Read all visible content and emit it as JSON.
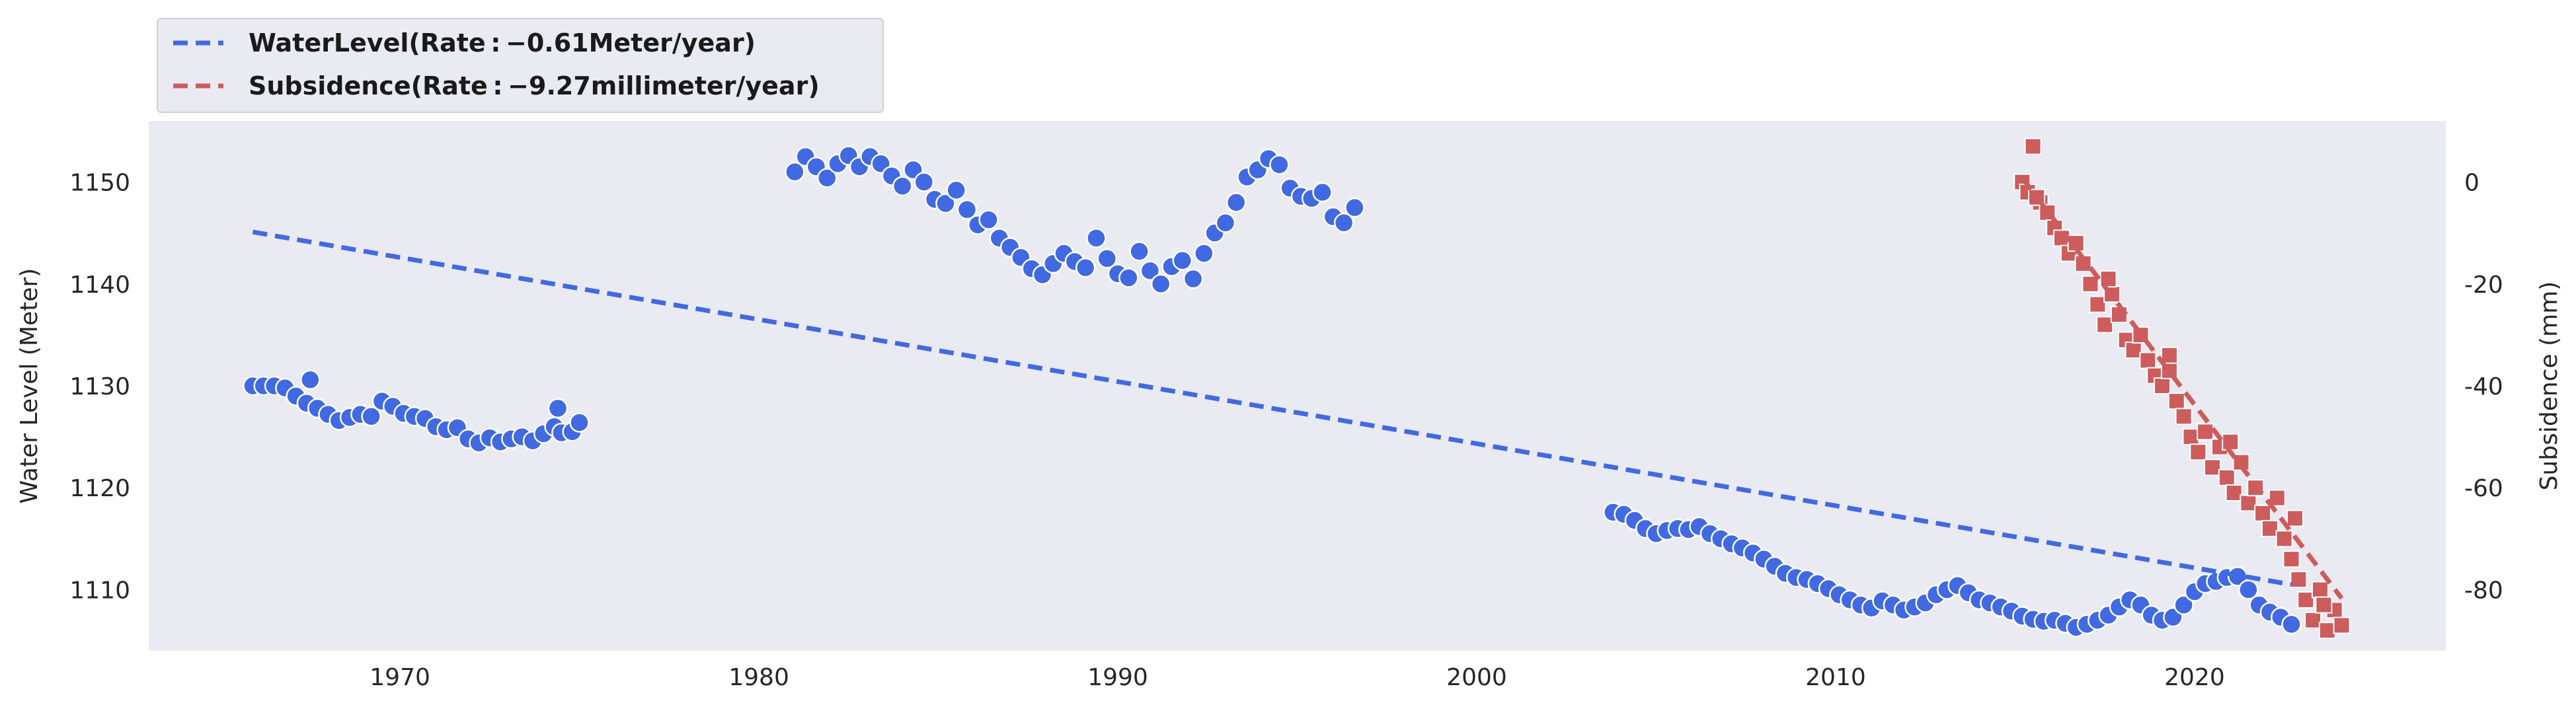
{
  "chart_data": {
    "type": "scatter",
    "title": "",
    "xlabel": "",
    "ylabel": "Water Level (Meter)",
    "y2label": "Subsidence (mm)",
    "xlim": [
      1963,
      2027
    ],
    "ylim": [
      1104,
      1156
    ],
    "y2lim": [
      -92,
      12
    ],
    "x_ticks": [
      "1970",
      "1980",
      "1990",
      "2000",
      "2010",
      "2020"
    ],
    "y_ticks": [
      "1110",
      "1120",
      "1130",
      "1140",
      "1150"
    ],
    "y2_ticks": [
      "-80",
      "-60",
      "-40",
      "-20",
      "0"
    ],
    "grid": false,
    "legend_position": "top-left (outside plot)",
    "colors": {
      "water": "#4169E1",
      "subsidence": "#CD5C5C",
      "plot_bg": "#EAEAF2"
    },
    "legend": [
      {
        "label": "WaterLevel(Rate : −0.61Meter/year)",
        "color": "#4169E1",
        "style": "dashed"
      },
      {
        "label": "Subsidence(Rate : −9.27millimeter/year)",
        "color": "#CD5C5C",
        "style": "dashed"
      }
    ],
    "series": [
      {
        "name": "WaterLevel",
        "axis": "left",
        "marker": "circle",
        "x": [
          1965.9,
          1966.2,
          1966.5,
          1966.8,
          1967.1,
          1967.4,
          1967.7,
          1968.0,
          1968.3,
          1968.6,
          1968.9,
          1969.2,
          1969.5,
          1969.8,
          1970.1,
          1970.4,
          1970.7,
          1971.0,
          1971.3,
          1971.6,
          1971.9,
          1972.2,
          1972.5,
          1972.8,
          1973.1,
          1973.4,
          1973.7,
          1974.0,
          1974.3,
          1974.5,
          1974.8,
          1975.0,
          1967.5,
          1974.4,
          1981.0,
          1981.3,
          1981.6,
          1981.9,
          1982.2,
          1982.5,
          1982.8,
          1983.1,
          1983.4,
          1983.7,
          1984.0,
          1984.3,
          1984.6,
          1984.9,
          1985.2,
          1985.5,
          1985.8,
          1986.1,
          1986.4,
          1986.7,
          1987.0,
          1987.3,
          1987.6,
          1987.9,
          1988.2,
          1988.5,
          1988.8,
          1989.1,
          1989.4,
          1989.7,
          1990.0,
          1990.3,
          1990.6,
          1990.9,
          1991.2,
          1991.5,
          1991.8,
          1992.1,
          1992.4,
          1992.7,
          1993.0,
          1993.3,
          1993.6,
          1993.9,
          1994.2,
          1994.5,
          1994.8,
          1995.1,
          1995.4,
          1995.7,
          1996.0,
          1996.3,
          1996.6,
          2003.8,
          2004.1,
          2004.4,
          2004.7,
          2005.0,
          2005.3,
          2005.6,
          2005.9,
          2006.2,
          2006.5,
          2006.8,
          2007.1,
          2007.4,
          2007.7,
          2008.0,
          2008.3,
          2008.6,
          2008.9,
          2009.2,
          2009.5,
          2009.8,
          2010.1,
          2010.4,
          2010.7,
          2011.0,
          2011.3,
          2011.6,
          2011.9,
          2012.2,
          2012.5,
          2012.8,
          2013.1,
          2013.4,
          2013.7,
          2014.0,
          2014.3,
          2014.6,
          2014.9,
          2015.2,
          2015.5,
          2015.8,
          2016.1,
          2016.4,
          2016.7,
          2017.0,
          2017.3,
          2017.6,
          2017.9,
          2018.2,
          2018.5,
          2018.8,
          2019.1,
          2019.4,
          2019.7,
          2020.0,
          2020.3,
          2020.6,
          2020.9,
          2021.2,
          2021.5,
          2021.8,
          2022.1,
          2022.4,
          2022.7
        ],
        "y": [
          1130.0,
          1130.0,
          1130.0,
          1129.8,
          1129.0,
          1128.3,
          1127.8,
          1127.2,
          1126.6,
          1126.9,
          1127.2,
          1127.0,
          1128.5,
          1128.0,
          1127.3,
          1127.0,
          1126.8,
          1126.0,
          1125.7,
          1125.9,
          1124.8,
          1124.4,
          1124.9,
          1124.5,
          1124.8,
          1125.0,
          1124.6,
          1125.3,
          1126.0,
          1125.4,
          1125.5,
          1126.4,
          1130.6,
          1127.8,
          1151.0,
          1152.5,
          1151.5,
          1150.4,
          1151.8,
          1152.6,
          1151.5,
          1152.5,
          1151.8,
          1150.6,
          1149.6,
          1151.2,
          1150.0,
          1148.3,
          1147.9,
          1149.2,
          1147.3,
          1145.8,
          1146.3,
          1144.5,
          1143.6,
          1142.6,
          1141.5,
          1140.9,
          1142.0,
          1143.0,
          1142.2,
          1141.6,
          1144.5,
          1142.5,
          1141.0,
          1140.6,
          1143.2,
          1141.3,
          1140.0,
          1141.7,
          1142.3,
          1140.5,
          1143.0,
          1145.0,
          1146.0,
          1148.0,
          1150.5,
          1151.2,
          1152.3,
          1151.7,
          1149.4,
          1148.6,
          1148.4,
          1149.0,
          1146.6,
          1146.0,
          1147.5,
          1117.6,
          1117.4,
          1116.8,
          1116.0,
          1115.5,
          1115.8,
          1116.0,
          1115.9,
          1116.2,
          1115.5,
          1115.0,
          1114.5,
          1114.1,
          1113.6,
          1113.0,
          1112.3,
          1111.6,
          1111.2,
          1111.0,
          1110.6,
          1110.1,
          1109.5,
          1109.0,
          1108.5,
          1108.2,
          1108.9,
          1108.5,
          1108.0,
          1108.3,
          1108.7,
          1109.5,
          1110.0,
          1110.4,
          1109.7,
          1109.0,
          1108.7,
          1108.3,
          1107.9,
          1107.4,
          1107.1,
          1106.9,
          1107.0,
          1106.7,
          1106.3,
          1106.6,
          1107.0,
          1107.5,
          1108.3,
          1109.0,
          1108.5,
          1107.5,
          1107.0,
          1107.3,
          1108.5,
          1109.8,
          1110.6,
          1110.8,
          1111.2,
          1111.3,
          1110.0,
          1108.5,
          1107.8,
          1107.3,
          1106.6
        ]
      },
      {
        "name": "Subsidence",
        "axis": "right",
        "marker": "square",
        "x": [
          2015.2,
          2015.35,
          2015.5,
          2015.7,
          2015.9,
          2016.1,
          2016.3,
          2016.5,
          2016.7,
          2016.9,
          2017.1,
          2017.3,
          2017.5,
          2017.7,
          2017.9,
          2018.1,
          2018.3,
          2018.5,
          2018.7,
          2018.9,
          2019.1,
          2019.3,
          2019.5,
          2019.7,
          2019.9,
          2020.1,
          2020.3,
          2020.5,
          2020.7,
          2020.9,
          2021.1,
          2021.3,
          2021.5,
          2021.7,
          2021.9,
          2022.1,
          2022.3,
          2022.5,
          2022.7,
          2022.9,
          2023.1,
          2023.3,
          2023.5,
          2023.7,
          2023.9,
          2024.1,
          2015.6,
          2017.6,
          2019.3,
          2021.0,
          2022.8,
          2023.6
        ],
        "y": [
          0,
          -2,
          7,
          -4,
          -6,
          -9,
          -11,
          -14,
          -12,
          -16,
          -20,
          -24,
          -28,
          -22,
          -26,
          -31,
          -33,
          -30,
          -35,
          -38,
          -40,
          -37,
          -43,
          -46,
          -50,
          -53,
          -49,
          -56,
          -52,
          -58,
          -61,
          -55,
          -63,
          -60,
          -65,
          -68,
          -62,
          -70,
          -74,
          -78,
          -82,
          -86,
          -80,
          -88,
          -84,
          -87,
          -3,
          -19,
          -34,
          -51,
          -66,
          -83
        ]
      }
    ],
    "trend_lines": [
      {
        "name": "WaterLevel trend",
        "x": [
          1965.9,
          2022.7
        ],
        "y": [
          1145.1,
          1110.5
        ],
        "axis": "left"
      },
      {
        "name": "Subsidence trend",
        "x": [
          2015.2,
          2024.1
        ],
        "y": [
          0.8,
          -81.7
        ],
        "axis": "right"
      }
    ]
  }
}
